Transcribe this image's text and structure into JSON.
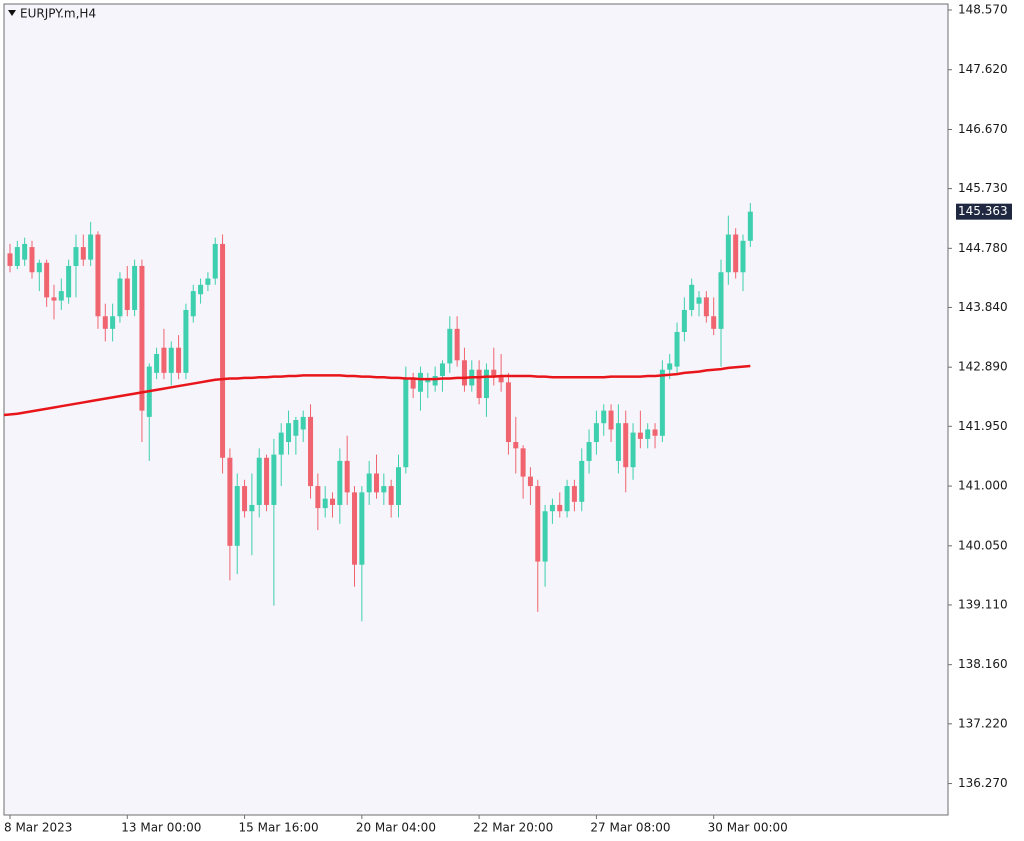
{
  "chart_data": {
    "type": "candlestick",
    "title": "EURJPY.m,H4",
    "categories": [
      "8 Mar 2023",
      null,
      null,
      null,
      null,
      null,
      null,
      null,
      null,
      null,
      null,
      null,
      null,
      null,
      null,
      null,
      "13 Mar 00:00",
      null,
      null,
      null,
      null,
      null,
      null,
      null,
      null,
      null,
      null,
      null,
      null,
      null,
      null,
      null,
      "15 Mar 16:00",
      null,
      null,
      null,
      null,
      null,
      null,
      null,
      null,
      null,
      null,
      null,
      null,
      null,
      null,
      null,
      "20 Mar 04:00",
      null,
      null,
      null,
      null,
      null,
      null,
      null,
      null,
      null,
      null,
      null,
      null,
      null,
      null,
      null,
      "22 Mar 20:00",
      null,
      null,
      null,
      null,
      null,
      null,
      null,
      null,
      null,
      null,
      null,
      null,
      null,
      null,
      null,
      "27 Mar 08:00",
      null,
      null,
      null,
      null,
      null,
      null,
      null,
      null,
      null,
      null,
      null,
      null,
      null,
      null,
      null,
      "30 Mar 00:00",
      null,
      null,
      null,
      null,
      null
    ],
    "open": [
      144.7,
      144.5,
      144.6,
      144.8,
      144.4,
      144.55,
      144.0,
      143.95,
      144.0,
      144.5,
      144.8,
      144.6,
      145.0,
      143.7,
      143.5,
      143.7,
      144.3,
      143.8,
      144.5,
      142.1,
      142.8,
      143.2,
      142.8,
      143.2,
      142.8,
      143.7,
      144.05,
      144.2,
      144.3,
      144.85,
      141.45,
      140.05,
      141.0,
      140.6,
      140.7,
      141.45,
      140.7,
      141.5,
      141.7,
      141.8,
      141.9,
      142.1,
      141.0,
      140.65,
      140.8,
      140.7,
      141.4,
      140.9,
      139.75,
      140.9,
      141.2,
      140.9,
      141.0,
      140.7,
      141.3,
      142.7,
      142.5,
      142.65,
      142.6,
      142.75,
      142.95,
      143.5,
      143.0,
      142.6,
      142.85,
      142.4,
      142.85,
      142.75,
      142.65,
      141.7,
      141.6,
      141.15,
      141.0,
      139.8,
      140.6,
      140.7,
      140.6,
      141.0,
      140.75,
      141.4,
      141.7,
      142.0,
      142.2,
      141.4,
      142.0,
      141.3,
      141.85,
      141.75,
      141.9,
      141.8,
      142.85,
      142.9,
      143.45,
      143.8,
      143.9,
      144.0,
      143.7,
      143.5,
      144.4,
      145.0,
      144.4,
      144.9
    ],
    "high": [
      144.85,
      144.9,
      144.95,
      144.9,
      144.6,
      144.6,
      144.2,
      144.3,
      144.6,
      145.0,
      145.0,
      145.2,
      145.05,
      143.9,
      143.9,
      144.4,
      144.5,
      144.6,
      144.6,
      142.95,
      143.2,
      143.5,
      143.3,
      143.4,
      143.9,
      144.2,
      144.3,
      144.4,
      144.95,
      145.0,
      141.6,
      141.2,
      141.1,
      141.2,
      141.6,
      141.5,
      141.75,
      142.0,
      142.2,
      142.1,
      142.2,
      142.3,
      141.2,
      141.0,
      140.9,
      141.6,
      141.8,
      141.0,
      141.0,
      141.4,
      141.5,
      141.2,
      141.1,
      141.5,
      142.9,
      142.8,
      142.9,
      142.8,
      142.9,
      143.0,
      143.7,
      143.7,
      143.2,
      143.0,
      143.0,
      142.95,
      143.2,
      143.1,
      142.8,
      142.1,
      141.65,
      141.3,
      141.1,
      140.7,
      140.8,
      140.9,
      141.1,
      141.1,
      141.6,
      141.9,
      142.2,
      142.3,
      142.3,
      142.3,
      142.2,
      142.0,
      142.2,
      142.0,
      142.0,
      143.0,
      143.1,
      143.6,
      144.0,
      144.3,
      144.1,
      144.1,
      144.0,
      144.6,
      145.3,
      145.1,
      145.0,
      145.5
    ],
    "low": [
      144.4,
      144.45,
      144.5,
      144.3,
      144.1,
      143.85,
      143.65,
      143.8,
      143.9,
      144.0,
      144.5,
      144.5,
      143.5,
      143.3,
      143.3,
      143.6,
      143.7,
      143.7,
      141.7,
      141.4,
      142.7,
      142.7,
      142.6,
      142.7,
      142.7,
      143.6,
      143.9,
      144.1,
      144.2,
      141.2,
      139.5,
      139.6,
      140.5,
      139.9,
      140.5,
      140.6,
      139.1,
      141.0,
      141.5,
      141.5,
      141.7,
      140.8,
      140.3,
      140.5,
      140.5,
      140.4,
      140.7,
      139.4,
      138.85,
      140.7,
      140.8,
      140.7,
      140.5,
      140.5,
      141.2,
      142.4,
      142.2,
      142.4,
      142.5,
      142.5,
      142.8,
      142.9,
      142.5,
      142.5,
      142.3,
      142.1,
      142.6,
      142.5,
      141.5,
      141.2,
      140.8,
      140.7,
      139.0,
      139.4,
      140.4,
      140.5,
      140.5,
      140.6,
      140.6,
      141.2,
      141.5,
      141.8,
      141.7,
      141.2,
      140.9,
      141.1,
      141.6,
      141.6,
      141.6,
      141.7,
      142.7,
      142.8,
      143.3,
      143.7,
      143.7,
      143.6,
      143.4,
      142.9,
      144.2,
      144.3,
      144.1,
      144.8
    ],
    "close": [
      144.5,
      144.8,
      144.85,
      144.4,
      144.55,
      144.0,
      143.95,
      144.1,
      144.5,
      144.8,
      144.6,
      145.0,
      143.7,
      143.5,
      143.7,
      144.3,
      143.8,
      144.5,
      142.2,
      142.9,
      143.1,
      142.8,
      143.2,
      142.8,
      143.8,
      144.1,
      144.2,
      144.3,
      144.85,
      141.45,
      140.05,
      141.0,
      140.6,
      140.7,
      141.45,
      140.7,
      141.5,
      141.85,
      142.0,
      142.05,
      142.1,
      141.0,
      140.65,
      140.8,
      140.7,
      141.4,
      140.9,
      139.75,
      140.9,
      141.2,
      140.9,
      141.0,
      140.7,
      141.3,
      142.7,
      142.55,
      142.8,
      142.7,
      142.75,
      142.95,
      143.5,
      143.0,
      142.6,
      142.85,
      142.4,
      142.85,
      142.75,
      142.65,
      141.7,
      141.6,
      141.15,
      141.0,
      139.8,
      140.6,
      140.7,
      140.6,
      141.0,
      140.75,
      141.4,
      141.7,
      142.0,
      142.2,
      141.9,
      142.0,
      141.3,
      141.85,
      141.75,
      141.9,
      141.8,
      142.85,
      142.95,
      143.45,
      143.8,
      144.2,
      144.0,
      143.7,
      143.5,
      144.4,
      145.0,
      144.4,
      144.9,
      145.363
    ],
    "up_color": "#3dcfae",
    "down_color": "#f0646f",
    "ma": {
      "color": "#e8161b",
      "values": [
        142.13,
        142.15,
        142.17,
        142.19,
        142.21,
        142.23,
        142.25,
        142.27,
        142.29,
        142.31,
        142.33,
        142.35,
        142.37,
        142.39,
        142.41,
        142.43,
        142.45,
        142.47,
        142.49,
        142.51,
        142.53,
        142.55,
        142.57,
        142.59,
        142.61,
        142.63,
        142.65,
        142.67,
        142.69,
        142.7,
        142.71,
        142.71,
        142.72,
        142.72,
        142.73,
        142.73,
        142.74,
        142.74,
        142.75,
        142.75,
        142.76,
        142.76,
        142.76,
        142.76,
        142.76,
        142.76,
        142.75,
        142.75,
        142.74,
        142.74,
        142.73,
        142.73,
        142.72,
        142.72,
        142.71,
        142.71,
        142.7,
        142.7,
        142.7,
        142.71,
        142.71,
        142.72,
        142.72,
        142.73,
        142.73,
        142.74,
        142.74,
        142.75,
        142.75,
        142.75,
        142.75,
        142.75,
        142.74,
        142.74,
        142.73,
        142.73,
        142.73,
        142.73,
        142.73,
        142.73,
        142.73,
        142.73,
        142.74,
        142.74,
        142.74,
        142.74,
        142.74,
        142.75,
        142.75,
        142.76,
        142.77,
        142.78,
        142.8,
        142.81,
        142.82,
        142.84,
        142.85,
        142.86,
        142.88,
        142.89,
        142.9,
        142.91
      ]
    },
    "last_price": 145.363,
    "ylim": [
      135.77,
      148.665
    ],
    "yticks": [
      {
        "value": 148.57,
        "label": "148.570"
      },
      {
        "value": 147.62,
        "label": "147.620"
      },
      {
        "value": 146.67,
        "label": "146.670"
      },
      {
        "value": 145.73,
        "label": "145.730"
      },
      {
        "value": 144.78,
        "label": "144.780"
      },
      {
        "value": 143.84,
        "label": "143.840"
      },
      {
        "value": 142.89,
        "label": "142.890"
      },
      {
        "value": 141.95,
        "label": "141.950"
      },
      {
        "value": 141,
        "label": "141.000"
      },
      {
        "value": 140.05,
        "label": "140.050"
      },
      {
        "value": 139.11,
        "label": "139.110"
      },
      {
        "value": 138.16,
        "label": "138.160"
      },
      {
        "value": 137.22,
        "label": "137.220"
      },
      {
        "value": 136.27,
        "label": "136.270"
      }
    ]
  }
}
